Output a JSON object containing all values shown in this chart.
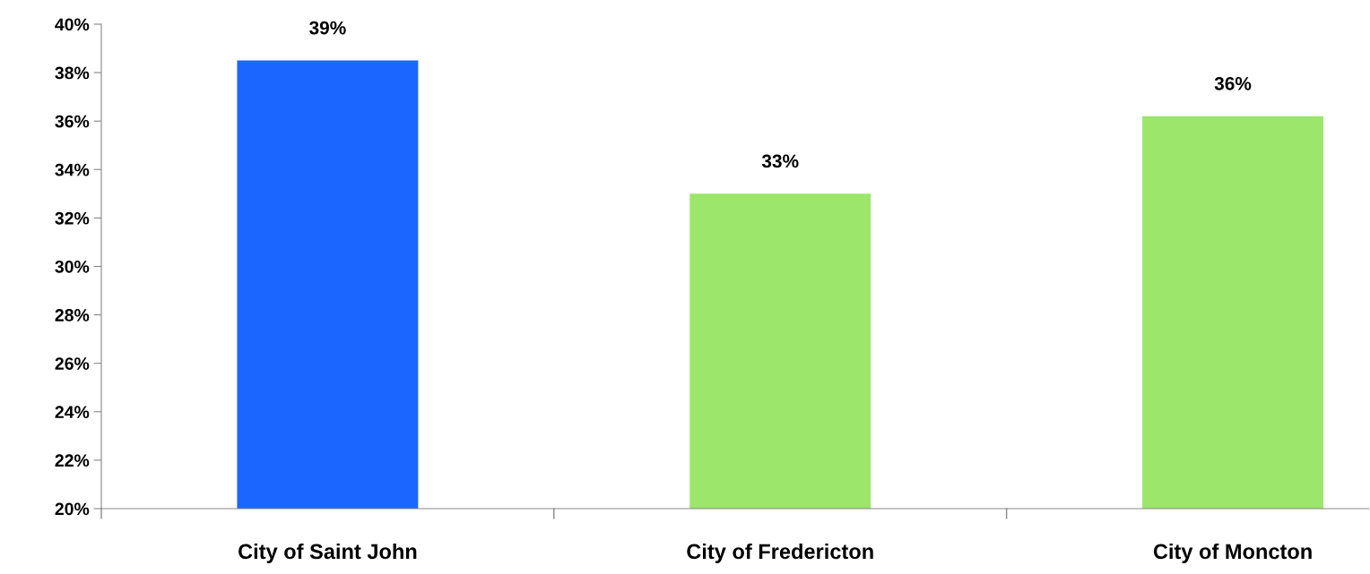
{
  "chart_data": {
    "type": "bar",
    "categories": [
      "City of Saint John",
      "City of Fredericton",
      "City of Moncton"
    ],
    "values": [
      38.5,
      33.0,
      36.2
    ],
    "colors": [
      "#1a66ff",
      "#9be66b",
      "#9be66b"
    ],
    "value_labels": [
      "39%",
      "33%",
      "36%"
    ],
    "ylim": [
      20,
      40
    ],
    "yticks": [
      {
        "value": 20,
        "label": "20%"
      },
      {
        "value": 22,
        "label": "22%"
      },
      {
        "value": 24,
        "label": "24%"
      },
      {
        "value": 26,
        "label": "26%"
      },
      {
        "value": 28,
        "label": "28%"
      },
      {
        "value": 30,
        "label": "30%"
      },
      {
        "value": 32,
        "label": "32%"
      },
      {
        "value": 34,
        "label": "34%"
      },
      {
        "value": 36,
        "label": "36%"
      },
      {
        "value": 38,
        "label": "38%"
      },
      {
        "value": 40,
        "label": "40%"
      }
    ],
    "grid": false,
    "legend": false
  }
}
